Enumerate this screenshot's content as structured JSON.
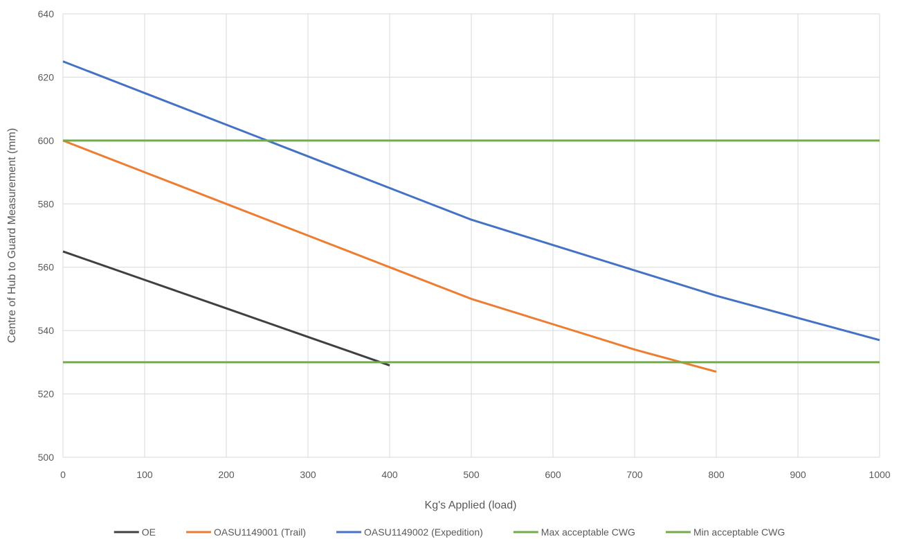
{
  "chart_data": {
    "type": "line",
    "title": "",
    "xlabel": "Kg's Applied (load)",
    "ylabel": "Centre of Hub to Guard Measurement (mm)",
    "xlim": [
      0,
      1000
    ],
    "ylim": [
      500,
      640
    ],
    "x_ticks": [
      0,
      100,
      200,
      300,
      400,
      500,
      600,
      700,
      800,
      900,
      1000
    ],
    "y_ticks": [
      500,
      520,
      540,
      560,
      580,
      600,
      620,
      640
    ],
    "grid": true,
    "legend_position": "bottom",
    "series": [
      {
        "name": "OE",
        "color": "#404040",
        "points": [
          [
            0,
            565
          ],
          [
            100,
            556
          ],
          [
            200,
            547
          ],
          [
            300,
            538
          ],
          [
            400,
            529
          ]
        ]
      },
      {
        "name": "OASU1149001 (Trail)",
        "color": "#ED7D31",
        "points": [
          [
            0,
            600
          ],
          [
            100,
            590
          ],
          [
            200,
            580
          ],
          [
            300,
            570
          ],
          [
            400,
            560
          ],
          [
            500,
            550
          ],
          [
            600,
            542
          ],
          [
            700,
            534
          ],
          [
            800,
            527
          ]
        ]
      },
      {
        "name": "OASU1149002 (Expedition)",
        "color": "#4472C4",
        "points": [
          [
            0,
            625
          ],
          [
            100,
            615
          ],
          [
            200,
            605
          ],
          [
            300,
            595
          ],
          [
            400,
            585
          ],
          [
            500,
            575
          ],
          [
            600,
            567
          ],
          [
            700,
            559
          ],
          [
            800,
            551
          ],
          [
            900,
            544
          ],
          [
            1000,
            537
          ]
        ]
      },
      {
        "name": "Max acceptable CWG",
        "color": "#70AD47",
        "points": [
          [
            0,
            600
          ],
          [
            1000,
            600
          ]
        ]
      },
      {
        "name": "Min acceptable CWG",
        "color": "#70AD47",
        "points": [
          [
            0,
            530
          ],
          [
            1000,
            530
          ]
        ]
      }
    ]
  }
}
